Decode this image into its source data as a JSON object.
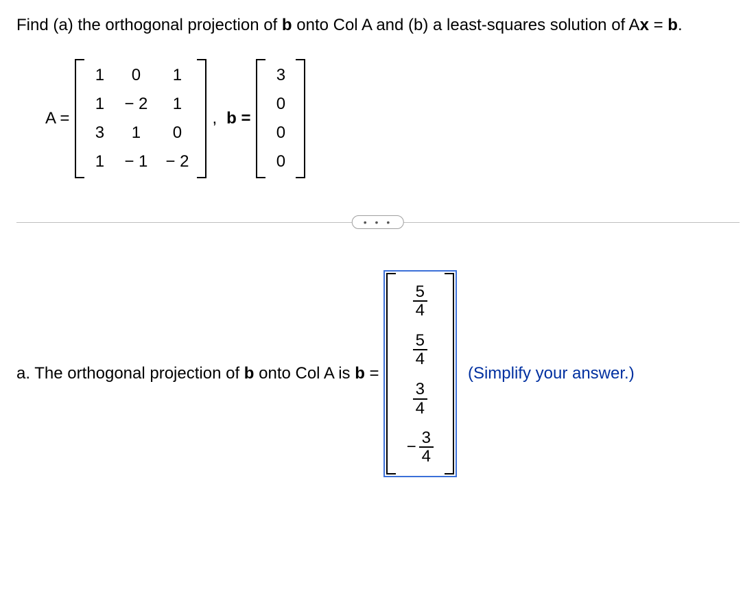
{
  "question": {
    "prefix": "Find (a) the orthogonal projection of ",
    "b1": "b",
    "mid1": " onto Col A and (b) a least-squares solution of A",
    "x": "x",
    "mid2": " = ",
    "b2": "b",
    "suffix": "."
  },
  "matrixA": {
    "label_left": "A =",
    "rows": [
      [
        "1",
        "0",
        "1"
      ],
      [
        "1",
        "− 2",
        "1"
      ],
      [
        "3",
        "1",
        "0"
      ],
      [
        "1",
        "− 1",
        "− 2"
      ]
    ]
  },
  "comma": ", ",
  "matrixB": {
    "label_left": "b =",
    "rows": [
      [
        "3"
      ],
      [
        "0"
      ],
      [
        "0"
      ],
      [
        "0"
      ]
    ]
  },
  "expander_dots": "• • •",
  "partA": {
    "prefix": "a. The orthogonal projection of ",
    "b1": "b",
    "mid": " onto Col A is ",
    "bhat": "b",
    "eq": " =",
    "answer_rows": [
      {
        "neg": false,
        "num": "5",
        "den": "4"
      },
      {
        "neg": false,
        "num": "5",
        "den": "4"
      },
      {
        "neg": false,
        "num": "3",
        "den": "4"
      },
      {
        "neg": true,
        "num": "3",
        "den": "4"
      }
    ],
    "simplify": "(Simplify your answer.)"
  },
  "style": {
    "accent_box": "#3a6fd8",
    "simplify_color": "#0030a0",
    "divider_color": "#bfbfbf"
  }
}
